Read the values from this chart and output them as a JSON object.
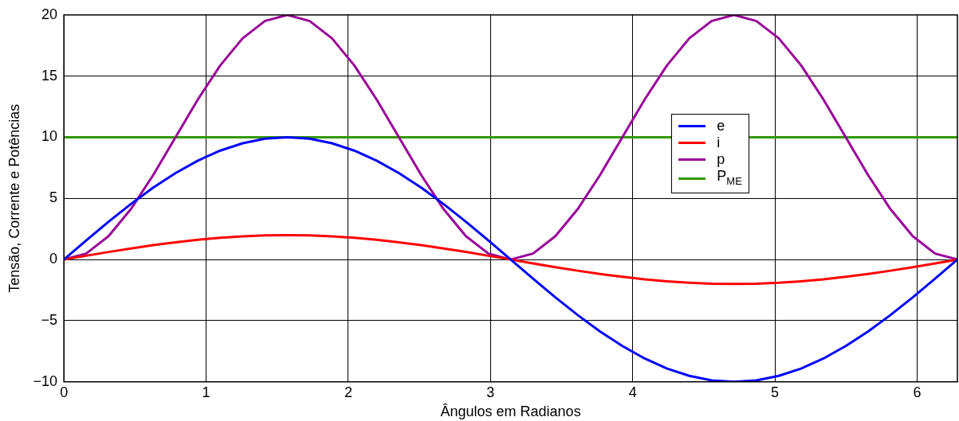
{
  "chart_data": {
    "type": "line",
    "xlabel": "Ângulos em Radianos",
    "ylabel": "Tensão, Corrente e Potências",
    "x": [
      0,
      0.157,
      0.314,
      0.471,
      0.628,
      0.785,
      0.942,
      1.1,
      1.257,
      1.414,
      1.571,
      1.728,
      1.885,
      2.042,
      2.199,
      2.356,
      2.513,
      2.67,
      2.827,
      2.985,
      3.142,
      3.299,
      3.456,
      3.613,
      3.77,
      3.927,
      4.084,
      4.241,
      4.398,
      4.555,
      4.712,
      4.869,
      5.027,
      5.184,
      5.341,
      5.498,
      5.655,
      5.812,
      5.969,
      6.126,
      6.283
    ],
    "series": [
      {
        "name": "e",
        "color": "#0000ff",
        "values": [
          0,
          1.56,
          3.09,
          4.54,
          5.88,
          7.07,
          8.09,
          8.91,
          9.51,
          9.88,
          10,
          9.88,
          9.51,
          8.91,
          8.09,
          7.07,
          5.88,
          4.54,
          3.09,
          1.56,
          0,
          -1.56,
          -3.09,
          -4.54,
          -5.88,
          -7.07,
          -8.09,
          -8.91,
          -9.51,
          -9.88,
          -10,
          -9.88,
          -9.51,
          -8.91,
          -8.09,
          -7.07,
          -5.88,
          -4.54,
          -3.09,
          -1.56,
          0
        ]
      },
      {
        "name": "i",
        "color": "#ff0000",
        "values": [
          0,
          0.31,
          0.62,
          0.91,
          1.18,
          1.41,
          1.62,
          1.78,
          1.9,
          1.98,
          2,
          1.98,
          1.9,
          1.78,
          1.62,
          1.41,
          1.18,
          0.91,
          0.62,
          0.31,
          0,
          -0.31,
          -0.62,
          -0.91,
          -1.18,
          -1.41,
          -1.62,
          -1.78,
          -1.9,
          -1.98,
          -2,
          -1.98,
          -1.9,
          -1.78,
          -1.62,
          -1.41,
          -1.18,
          -0.91,
          -0.62,
          -0.31,
          0
        ]
      },
      {
        "name": "p",
        "color": "#990099",
        "values": [
          0,
          0.49,
          1.91,
          4.12,
          6.91,
          10,
          13.09,
          15.88,
          18.09,
          19.51,
          20,
          19.51,
          18.09,
          15.88,
          13.09,
          10,
          6.91,
          4.12,
          1.91,
          0.49,
          0,
          0.49,
          1.91,
          4.12,
          6.91,
          10,
          13.09,
          15.88,
          18.09,
          19.51,
          20,
          19.51,
          18.09,
          15.88,
          13.09,
          10,
          6.91,
          4.12,
          1.91,
          0.49,
          0
        ]
      },
      {
        "name": "P$_{ME}$",
        "color": "#339900",
        "x": [
          0,
          6.283
        ],
        "values": [
          10,
          10
        ]
      }
    ],
    "xlim": [
      0,
      6.283
    ],
    "xticks": [
      0,
      1,
      2,
      3,
      4,
      5,
      6
    ],
    "ylim": [
      -10,
      20
    ],
    "yticks": [
      {
        "value": -10,
        "label": "−10"
      },
      {
        "value": -5,
        "label": "−5"
      },
      0,
      5,
      10,
      15,
      20
    ],
    "grid": true,
    "legend": "right",
    "marker": "none",
    "line_style": "solid"
  }
}
